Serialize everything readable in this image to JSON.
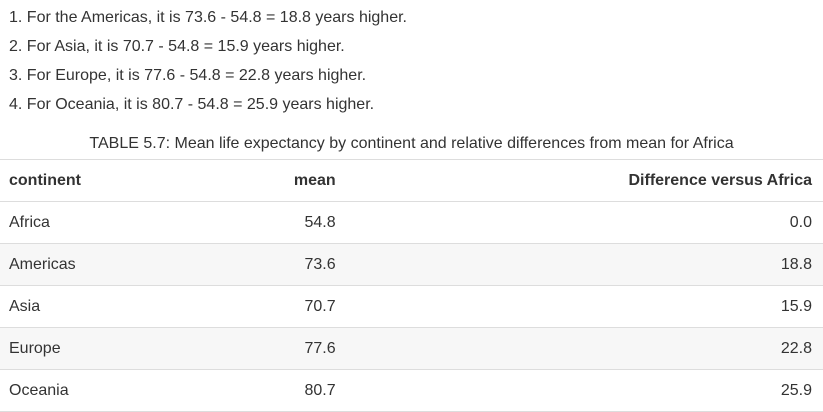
{
  "list_items": [
    "1. For the Americas, it is 73.6 - 54.8 = 18.8 years higher.",
    "2. For Asia, it is 70.7 - 54.8 = 15.9 years higher.",
    "3. For Europe, it is 77.6 - 54.8 = 22.8 years higher.",
    "4. For Oceania, it is 80.7 - 54.8 = 25.9 years higher."
  ],
  "table": {
    "caption": "TABLE 5.7: Mean life expectancy by continent and relative differences from mean for Africa",
    "headers": [
      "continent",
      "mean",
      "Difference versus Africa"
    ],
    "rows": [
      [
        "Africa",
        "54.8",
        "0.0"
      ],
      [
        "Americas",
        "73.6",
        "18.8"
      ],
      [
        "Asia",
        "70.7",
        "15.9"
      ],
      [
        "Europe",
        "77.6",
        "22.8"
      ],
      [
        "Oceania",
        "80.7",
        "25.9"
      ]
    ]
  },
  "chart_data": {
    "type": "table",
    "title": "TABLE 5.7: Mean life expectancy by continent and relative differences from mean for Africa",
    "columns": [
      "continent",
      "mean",
      "Difference versus Africa"
    ],
    "categories": [
      "Africa",
      "Americas",
      "Asia",
      "Europe",
      "Oceania"
    ],
    "series": [
      {
        "name": "mean",
        "values": [
          54.8,
          73.6,
          70.7,
          77.6,
          80.7
        ]
      },
      {
        "name": "Difference versus Africa",
        "values": [
          0.0,
          18.8,
          15.9,
          22.8,
          25.9
        ]
      }
    ]
  }
}
